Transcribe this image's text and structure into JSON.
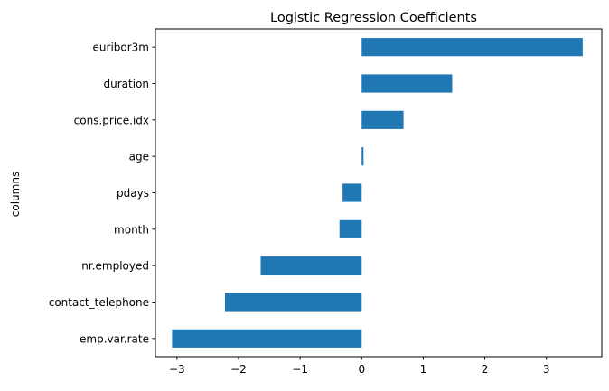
{
  "chart_data": {
    "type": "bar",
    "orientation": "horizontal",
    "title": "Logistic Regression Coefficients",
    "xlabel": "",
    "ylabel": "columns",
    "categories": [
      "emp.var.rate",
      "contact_telephone",
      "nr.employed",
      "month",
      "pdays",
      "age",
      "cons.price.idx",
      "duration",
      "euribor3m"
    ],
    "values": [
      -3.08,
      -2.22,
      -1.64,
      -0.36,
      -0.31,
      0.03,
      0.68,
      1.47,
      3.59
    ],
    "xlim": [
      -3.35,
      3.9
    ],
    "xticks": [
      -3,
      -2,
      -1,
      0,
      1,
      2,
      3
    ],
    "xtick_labels": [
      "−3",
      "−2",
      "−1",
      "0",
      "1",
      "2",
      "3"
    ],
    "grid": false,
    "color": "#1f77b4"
  }
}
